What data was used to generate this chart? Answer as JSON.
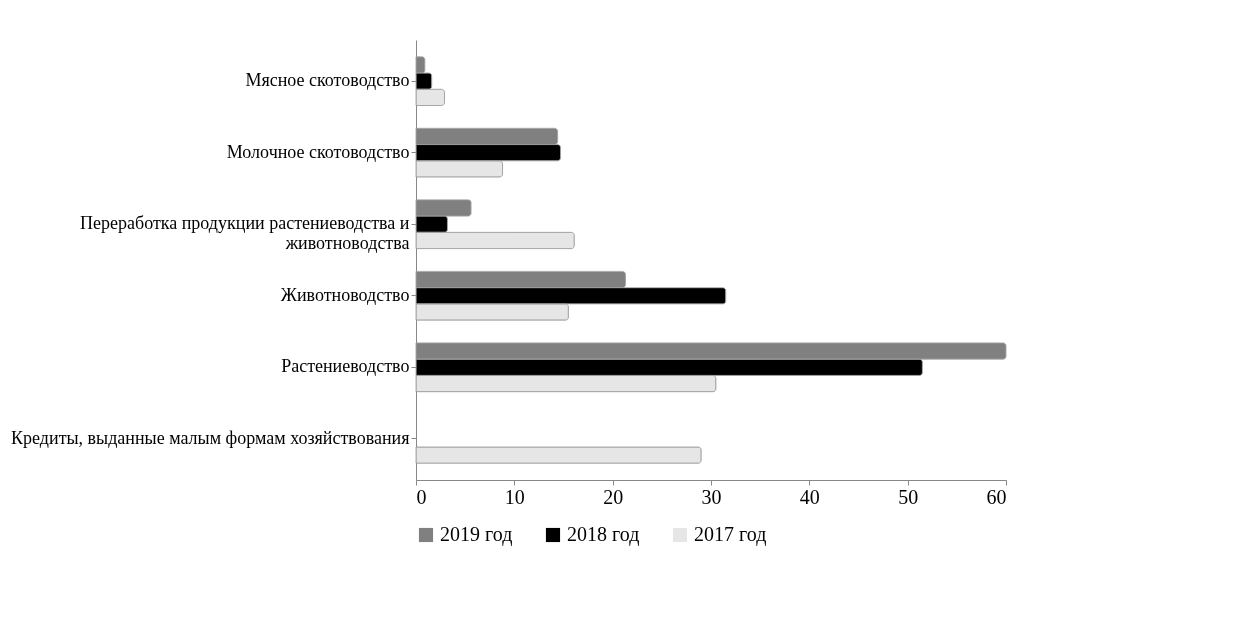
{
  "chart_data": {
    "type": "bar",
    "orientation": "horizontal",
    "categories": [
      "Мясное скотоводство",
      "Молочное скотоводство",
      "Переработка продукции растениеводства и животноводства",
      "Животноводство",
      "Растениеводство",
      "Кредиты, выданные малым формам хозяйствования"
    ],
    "series": [
      {
        "name": "2019 год",
        "color": "#808080",
        "values": [
          0.9,
          14.4,
          5.6,
          21.3,
          60,
          null
        ]
      },
      {
        "name": "2018 год",
        "color": "#000000",
        "values": [
          1.6,
          14.7,
          3.2,
          31.5,
          51.5,
          null
        ]
      },
      {
        "name": "2017 год",
        "color": "#e6e6e6",
        "values": [
          2.9,
          8.8,
          16.1,
          15.5,
          30.5,
          29
        ]
      }
    ],
    "xlim": [
      0,
      60
    ],
    "xticks": [
      0,
      10,
      20,
      30,
      40,
      50,
      60
    ],
    "grid": false,
    "legend": "bottom"
  }
}
